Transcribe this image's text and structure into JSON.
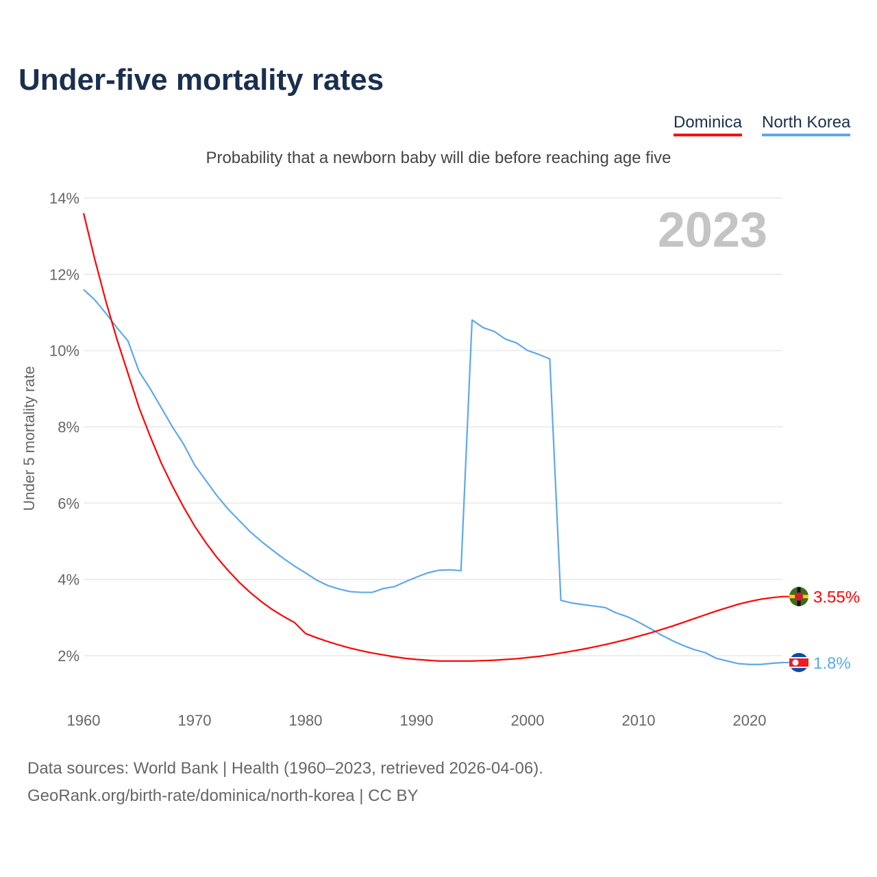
{
  "title": "Under-five mortality rates",
  "subtitle": "Probability that a newborn baby will die before reaching age five",
  "year_watermark": "2023",
  "footer": {
    "line1": "Data sources: World Bank | Health (1960–2023, retrieved 2026-04-06).",
    "line2": "GeoRank.org/birth-rate/dominica/north-korea | CC BY"
  },
  "colors": {
    "Dominica": "#ff0000",
    "North Korea": "#5ca8ec"
  },
  "chart_data": {
    "type": "line",
    "title": "Under-five mortality rates",
    "xlabel": "",
    "ylabel": "Under 5 mortality rate",
    "xlim": [
      1960,
      2023
    ],
    "ylim": [
      1,
      14
    ],
    "yticks": [
      2,
      4,
      6,
      8,
      10,
      12,
      14
    ],
    "ytick_labels": [
      "2%",
      "4%",
      "6%",
      "8%",
      "10%",
      "12%",
      "14%"
    ],
    "xticks": [
      1960,
      1970,
      1980,
      1990,
      2000,
      2010,
      2020
    ],
    "xtick_labels": [
      "1960",
      "1970",
      "1980",
      "1990",
      "2000",
      "2010",
      "2020"
    ],
    "grid": true,
    "legend": "top-right",
    "x_start": 1960,
    "series": [
      {
        "name": "Dominica",
        "end_label": "3.55%",
        "values": [
          13.6,
          12.4,
          11.3,
          10.3,
          9.4,
          8.5,
          7.75,
          7.05,
          6.45,
          5.9,
          5.4,
          4.97,
          4.58,
          4.24,
          3.93,
          3.66,
          3.42,
          3.21,
          3.03,
          2.87,
          2.58,
          2.47,
          2.37,
          2.28,
          2.2,
          2.13,
          2.07,
          2.02,
          1.97,
          1.93,
          1.9,
          1.88,
          1.86,
          1.86,
          1.86,
          1.86,
          1.87,
          1.88,
          1.9,
          1.92,
          1.95,
          1.98,
          2.02,
          2.07,
          2.12,
          2.17,
          2.23,
          2.29,
          2.36,
          2.43,
          2.51,
          2.59,
          2.68,
          2.77,
          2.87,
          2.97,
          3.07,
          3.17,
          3.26,
          3.35,
          3.42,
          3.48,
          3.52,
          3.55
        ]
      },
      {
        "name": "North Korea",
        "end_label": "1.8%",
        "values": [
          11.6,
          11.33,
          10.98,
          10.6,
          10.25,
          9.45,
          9.0,
          8.5,
          8.0,
          7.55,
          7.0,
          6.6,
          6.2,
          5.85,
          5.55,
          5.25,
          5.0,
          4.77,
          4.55,
          4.35,
          4.17,
          3.98,
          3.84,
          3.75,
          3.68,
          3.66,
          3.66,
          3.76,
          3.81,
          3.94,
          4.06,
          4.17,
          4.24,
          4.25,
          4.23,
          10.8,
          10.6,
          10.5,
          10.3,
          10.2,
          10.0,
          9.9,
          9.78,
          3.45,
          3.38,
          3.34,
          3.3,
          3.26,
          3.12,
          3.02,
          2.88,
          2.72,
          2.55,
          2.4,
          2.27,
          2.16,
          2.08,
          1.93,
          1.86,
          1.79,
          1.77,
          1.77,
          1.8,
          1.82
        ]
      }
    ]
  }
}
